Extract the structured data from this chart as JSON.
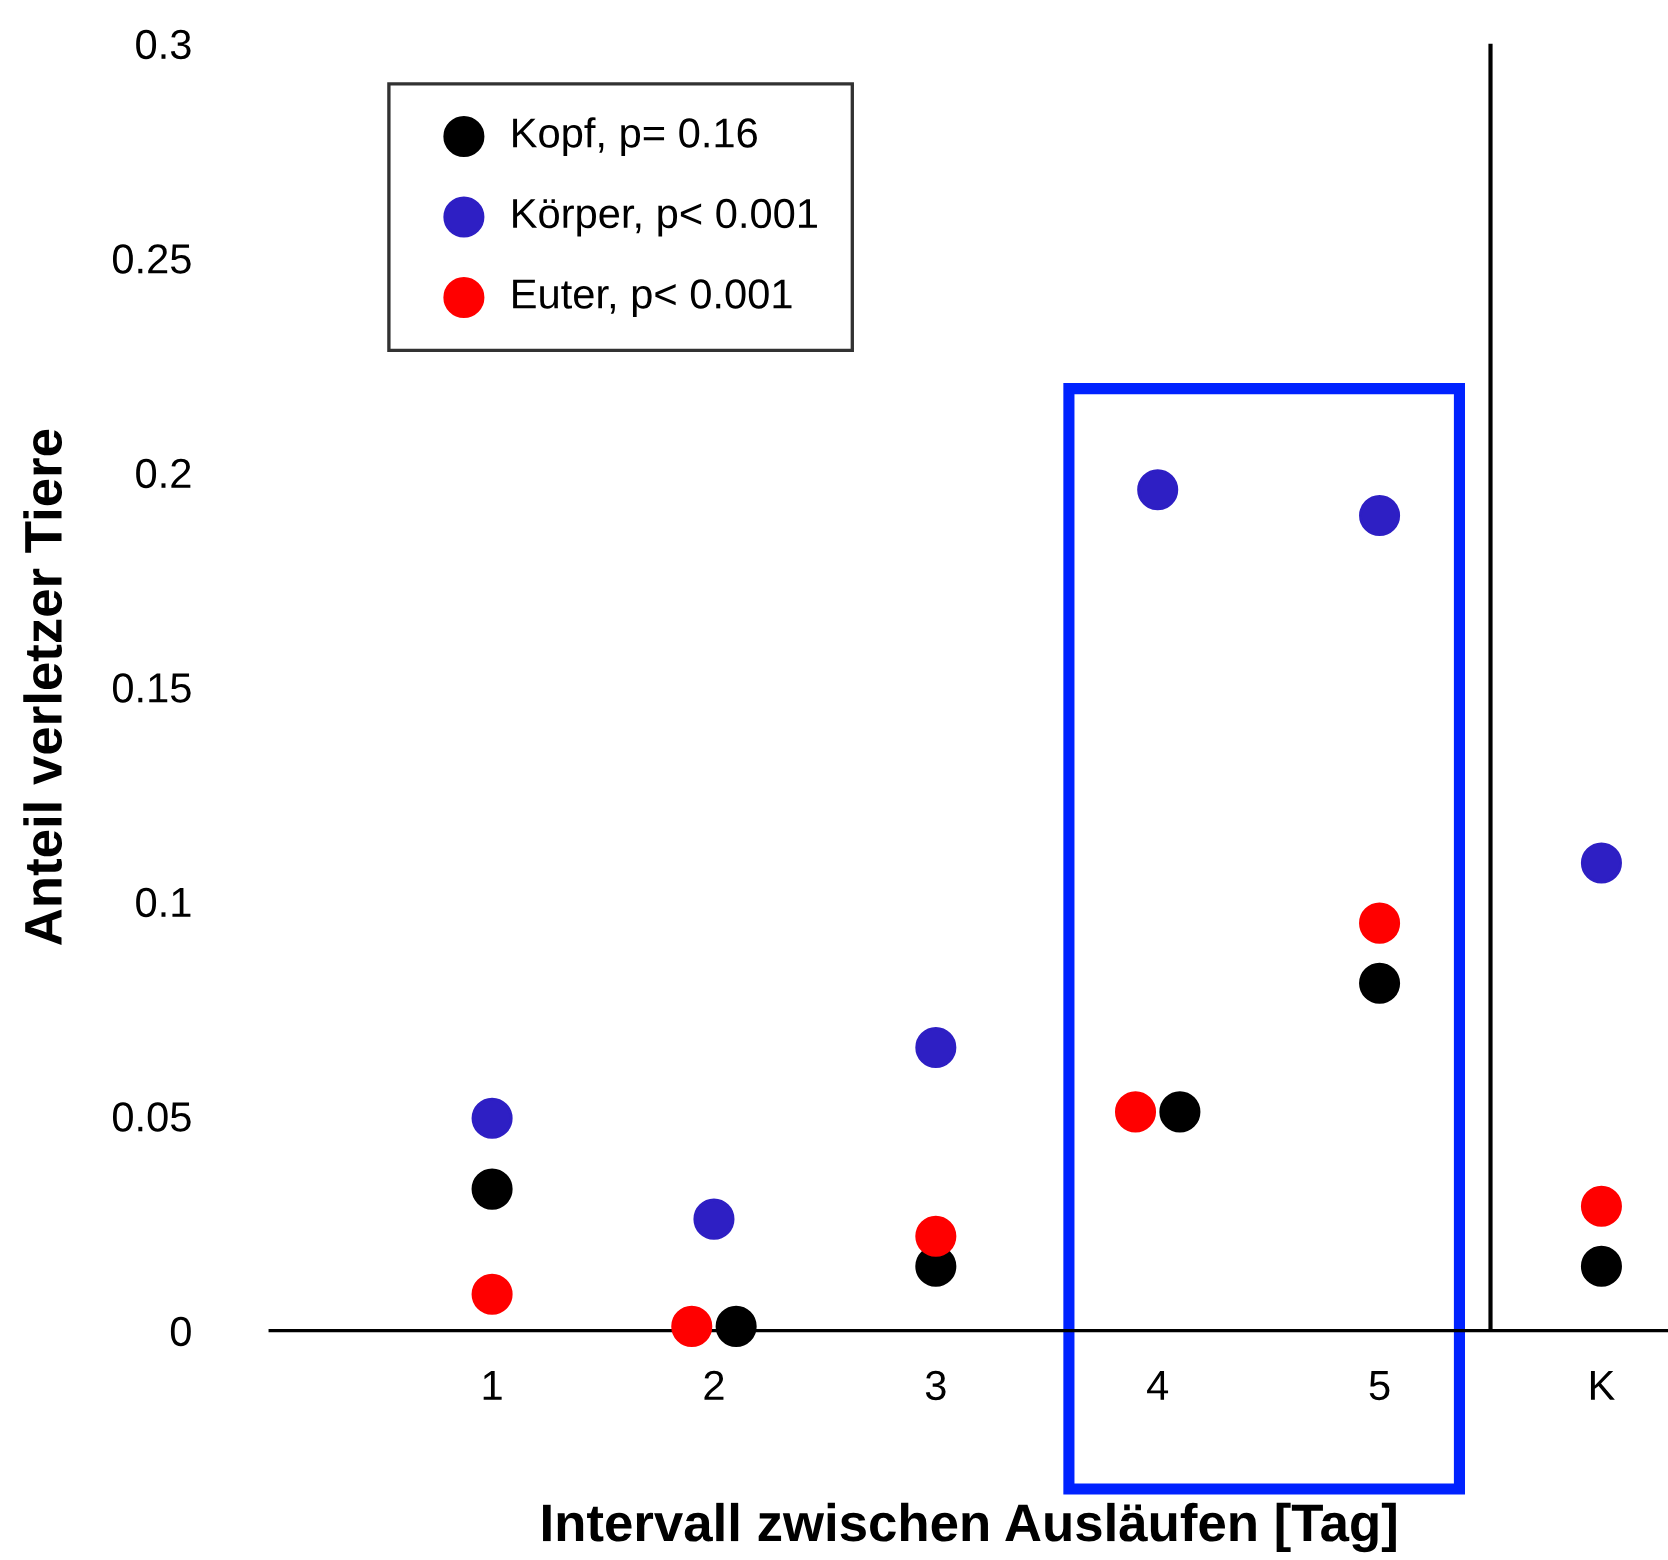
{
  "chart_data": {
    "type": "scatter",
    "xlabel": "Intervall zwischen Ausläufen [Tag]",
    "ylabel": "Anteil verletzer Tiere",
    "series": [
      {
        "name": "Kopf, p= 0.16",
        "color": "#000000",
        "x": [
          1,
          2.1,
          3,
          4.1,
          5,
          6
        ],
        "values": [
          0.033,
          0.001,
          0.015,
          0.051,
          0.081,
          0.015
        ]
      },
      {
        "name": "Körper, p< 0.001",
        "color": "#2e1fc4",
        "x": [
          1,
          2,
          3,
          4,
          5,
          6
        ],
        "values": [
          0.0495,
          0.026,
          0.066,
          0.196,
          0.19,
          0.109
        ]
      },
      {
        "name": "Euter, p< 0.001",
        "color": "#ff0000",
        "x": [
          1,
          1.9,
          3,
          3.9,
          5,
          6
        ],
        "values": [
          0.0085,
          0.001,
          0.022,
          0.051,
          0.095,
          0.029
        ]
      }
    ],
    "xlim": [
      0,
      6.3
    ],
    "xticks": [
      {
        "value": 1,
        "label": "1"
      },
      {
        "value": 2,
        "label": "2"
      },
      {
        "value": 3,
        "label": "3"
      },
      {
        "value": 4,
        "label": "4"
      },
      {
        "value": 5,
        "label": "5"
      },
      {
        "value": 6,
        "label": "K"
      }
    ],
    "ylim": [
      0,
      0.3
    ],
    "yticks": [
      0,
      0.05,
      0.1,
      0.15,
      0.2,
      0.25,
      0.3
    ],
    "ref_lines": [
      {
        "axis": "x",
        "value": 5.5,
        "color": "#000000"
      }
    ],
    "marker": "circle",
    "grid": false,
    "legend": "top left"
  }
}
